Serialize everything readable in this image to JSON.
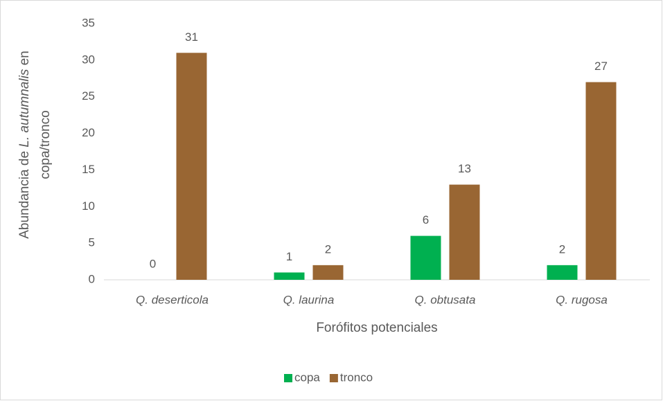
{
  "chart_data": {
    "type": "bar",
    "categories": [
      "Q. deserticola",
      "Q. laurina",
      "Q. obtusata",
      "Q. rugosa"
    ],
    "series": [
      {
        "name": "copa",
        "color": "#00b050",
        "values": [
          0,
          1,
          6,
          2
        ]
      },
      {
        "name": "tronco",
        "color": "#996633",
        "values": [
          31,
          2,
          13,
          27
        ]
      }
    ],
    "ylim": [
      0,
      35
    ],
    "yticks": [
      0,
      5,
      10,
      15,
      20,
      25,
      30,
      35
    ],
    "xlabel": "Forófitos potenciales",
    "ylabel": [
      [
        {
          "text": "Abundancia de ",
          "italic": false
        },
        {
          "text": "L. autumnalis",
          "italic": true
        },
        {
          "text": " en",
          "italic": false
        }
      ],
      [
        {
          "text": "copa/tronco",
          "italic": false
        }
      ]
    ],
    "categories_italic": true,
    "grid": false,
    "legend": "bottom"
  }
}
